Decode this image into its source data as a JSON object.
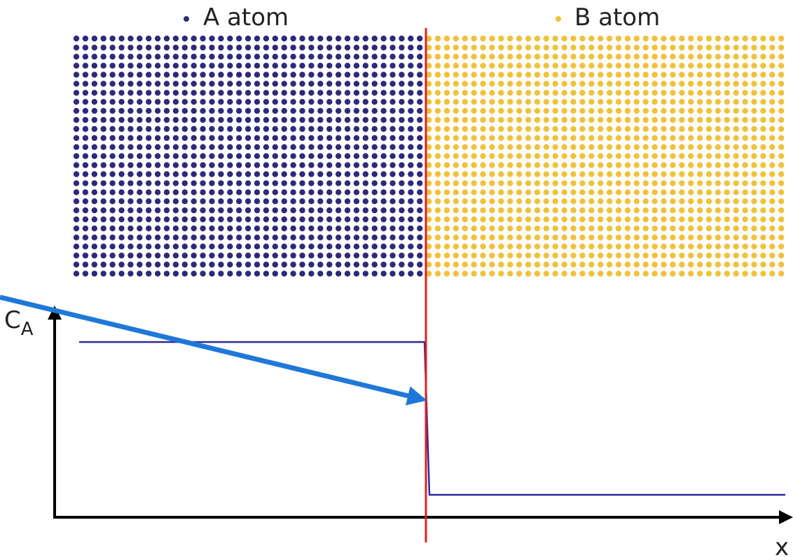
{
  "legend": {
    "items": [
      {
        "label": "A atom",
        "color": "#2e2a7a"
      },
      {
        "label": "B atom",
        "color": "#f0c23a"
      }
    ]
  },
  "axes": {
    "y_label": {
      "main": "C",
      "subscript": "A"
    },
    "x_label": "x"
  }
}
